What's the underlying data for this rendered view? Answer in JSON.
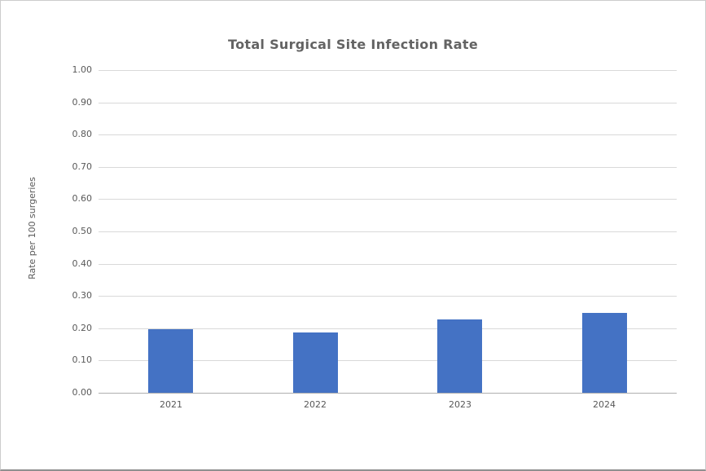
{
  "chart_data": {
    "type": "bar",
    "title": "Total Surgical Site Infection Rate",
    "xlabel": "",
    "ylabel": "Rate per 100 surgeries",
    "categories": [
      "2021",
      "2022",
      "2023",
      "2024"
    ],
    "values": [
      0.197,
      0.187,
      0.227,
      0.248
    ],
    "ylim": [
      0.0,
      1.0
    ],
    "ytick_step": 0.1,
    "ytick_decimals": 2,
    "grid": true,
    "legend": false,
    "bar_color": "#4472C4",
    "text_color": "#595959",
    "title_color": "#636363",
    "gridline_color": "#d9d9d9",
    "axis_line_color": "#b0b0b0",
    "background_color": "#ffffff"
  }
}
